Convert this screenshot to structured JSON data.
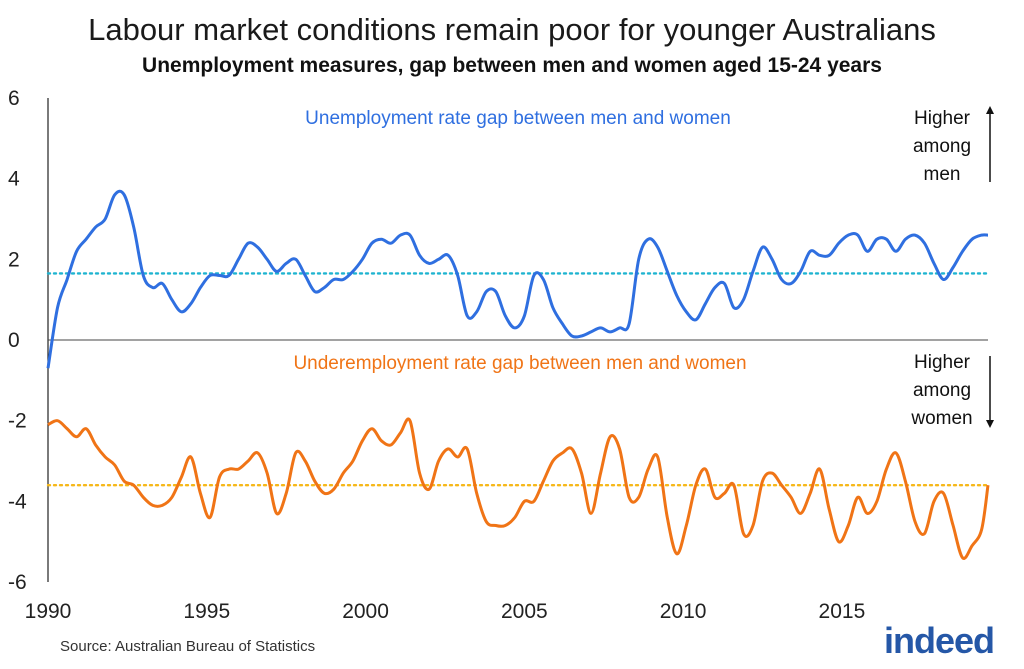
{
  "chart_data": {
    "type": "line",
    "title": "Labour market conditions remain poor for younger Australians",
    "subtitle": "Unemployment measures, gap between men and women aged 15-24 years",
    "ylim": [
      -6,
      6
    ],
    "xlim": [
      1990,
      2019.6
    ],
    "y_ticks": [
      "6",
      "4",
      "2",
      "0",
      "-2",
      "-4",
      "-6"
    ],
    "x_ticks": [
      "1990",
      "1995",
      "2000",
      "2005",
      "2010",
      "2015"
    ],
    "grid": false,
    "series": [
      {
        "name": "Unemployment rate gap between men and women",
        "color": "#2f6fe0",
        "average": 1.65,
        "average_color": "#1fb4d0",
        "x": [
          1990.0,
          1990.3,
          1990.6,
          1990.9,
          1991.2,
          1991.5,
          1991.8,
          1992.1,
          1992.4,
          1992.7,
          1993.0,
          1993.3,
          1993.6,
          1993.9,
          1994.2,
          1994.5,
          1994.8,
          1995.1,
          1995.4,
          1995.7,
          1996.0,
          1996.3,
          1996.6,
          1996.9,
          1997.2,
          1997.5,
          1997.8,
          1998.1,
          1998.4,
          1998.7,
          1999.0,
          1999.3,
          1999.6,
          1999.9,
          2000.2,
          2000.5,
          2000.8,
          2001.1,
          2001.4,
          2001.7,
          2002.0,
          2002.3,
          2002.6,
          2002.9,
          2003.2,
          2003.5,
          2003.8,
          2004.1,
          2004.4,
          2004.7,
          2005.0,
          2005.3,
          2005.6,
          2005.9,
          2006.2,
          2006.5,
          2006.8,
          2007.1,
          2007.4,
          2007.7,
          2008.0,
          2008.3,
          2008.6,
          2008.9,
          2009.2,
          2009.5,
          2009.8,
          2010.1,
          2010.4,
          2010.7,
          2011.0,
          2011.3,
          2011.6,
          2011.9,
          2012.2,
          2012.5,
          2012.8,
          2013.1,
          2013.4,
          2013.7,
          2014.0,
          2014.3,
          2014.6,
          2014.9,
          2015.2,
          2015.5,
          2015.8,
          2016.1,
          2016.4,
          2016.7,
          2017.0,
          2017.3,
          2017.6,
          2017.9,
          2018.2,
          2018.5,
          2018.8,
          2019.1,
          2019.4,
          2019.6
        ],
        "y": [
          -0.7,
          0.8,
          1.5,
          2.2,
          2.5,
          2.8,
          3.0,
          3.6,
          3.6,
          2.8,
          1.6,
          1.3,
          1.4,
          1.0,
          0.7,
          0.9,
          1.3,
          1.6,
          1.6,
          1.6,
          2.0,
          2.4,
          2.3,
          2.0,
          1.7,
          1.9,
          2.0,
          1.6,
          1.2,
          1.3,
          1.5,
          1.5,
          1.7,
          2.0,
          2.4,
          2.5,
          2.4,
          2.6,
          2.6,
          2.1,
          1.9,
          2.0,
          2.1,
          1.6,
          0.6,
          0.7,
          1.2,
          1.2,
          0.6,
          0.3,
          0.6,
          1.6,
          1.5,
          0.8,
          0.4,
          0.1,
          0.1,
          0.2,
          0.3,
          0.2,
          0.3,
          0.4,
          2.0,
          2.5,
          2.3,
          1.7,
          1.1,
          0.7,
          0.5,
          0.9,
          1.3,
          1.4,
          0.8,
          1.0,
          1.7,
          2.3,
          2.0,
          1.5,
          1.4,
          1.7,
          2.2,
          2.1,
          2.1,
          2.4,
          2.6,
          2.6,
          2.2,
          2.5,
          2.5,
          2.2,
          2.5,
          2.6,
          2.4,
          1.9,
          1.5,
          1.8,
          2.2,
          2.5,
          2.6,
          2.6
        ]
      },
      {
        "name": "Underemployment rate gap between men and women",
        "color": "#f07416",
        "average": -3.6,
        "average_color": "#f6b81a",
        "x": [
          1990.0,
          1990.3,
          1990.6,
          1990.9,
          1991.2,
          1991.5,
          1991.8,
          1992.1,
          1992.4,
          1992.7,
          1993.0,
          1993.3,
          1993.6,
          1993.9,
          1994.2,
          1994.5,
          1994.8,
          1995.1,
          1995.4,
          1995.7,
          1996.0,
          1996.3,
          1996.6,
          1996.9,
          1997.2,
          1997.5,
          1997.8,
          1998.1,
          1998.4,
          1998.7,
          1999.0,
          1999.3,
          1999.6,
          1999.9,
          2000.2,
          2000.5,
          2000.8,
          2001.1,
          2001.4,
          2001.7,
          2002.0,
          2002.3,
          2002.6,
          2002.9,
          2003.2,
          2003.5,
          2003.8,
          2004.1,
          2004.4,
          2004.7,
          2005.0,
          2005.3,
          2005.6,
          2005.9,
          2006.2,
          2006.5,
          2006.8,
          2007.1,
          2007.4,
          2007.7,
          2008.0,
          2008.3,
          2008.6,
          2008.9,
          2009.2,
          2009.5,
          2009.8,
          2010.1,
          2010.4,
          2010.7,
          2011.0,
          2011.3,
          2011.6,
          2011.9,
          2012.2,
          2012.5,
          2012.8,
          2013.1,
          2013.4,
          2013.7,
          2014.0,
          2014.3,
          2014.6,
          2014.9,
          2015.2,
          2015.5,
          2015.8,
          2016.1,
          2016.4,
          2016.7,
          2017.0,
          2017.3,
          2017.6,
          2017.9,
          2018.2,
          2018.5,
          2018.8,
          2019.1,
          2019.4,
          2019.6
        ],
        "y": [
          -2.1,
          -2.0,
          -2.2,
          -2.4,
          -2.2,
          -2.6,
          -2.9,
          -3.1,
          -3.5,
          -3.6,
          -3.9,
          -4.1,
          -4.1,
          -3.9,
          -3.4,
          -2.9,
          -3.8,
          -4.4,
          -3.4,
          -3.2,
          -3.2,
          -3.0,
          -2.8,
          -3.3,
          -4.3,
          -3.8,
          -2.8,
          -3.0,
          -3.5,
          -3.8,
          -3.7,
          -3.3,
          -3.0,
          -2.5,
          -2.2,
          -2.5,
          -2.6,
          -2.3,
          -2.0,
          -3.3,
          -3.7,
          -3.0,
          -2.7,
          -2.9,
          -2.7,
          -3.8,
          -4.5,
          -4.6,
          -4.6,
          -4.4,
          -4.0,
          -4.0,
          -3.5,
          -3.0,
          -2.8,
          -2.7,
          -3.3,
          -4.3,
          -3.3,
          -2.4,
          -2.7,
          -3.9,
          -3.9,
          -3.2,
          -2.9,
          -4.4,
          -5.3,
          -4.6,
          -3.6,
          -3.2,
          -3.9,
          -3.8,
          -3.6,
          -4.8,
          -4.6,
          -3.5,
          -3.3,
          -3.6,
          -3.9,
          -4.3,
          -3.8,
          -3.2,
          -4.2,
          -5.0,
          -4.6,
          -3.9,
          -4.3,
          -4.0,
          -3.2,
          -2.8,
          -3.5,
          -4.5,
          -4.8,
          -4.0,
          -3.8,
          -4.6,
          -5.4,
          -5.1,
          -4.7,
          -3.6
        ]
      }
    ],
    "annotations": {
      "top": [
        "Higher",
        "among",
        "men"
      ],
      "bottom": [
        "Higher",
        "among",
        "women"
      ]
    }
  },
  "footer": {
    "source": "Source: Australian Bureau of Statistics",
    "logo_text": "indeed"
  }
}
